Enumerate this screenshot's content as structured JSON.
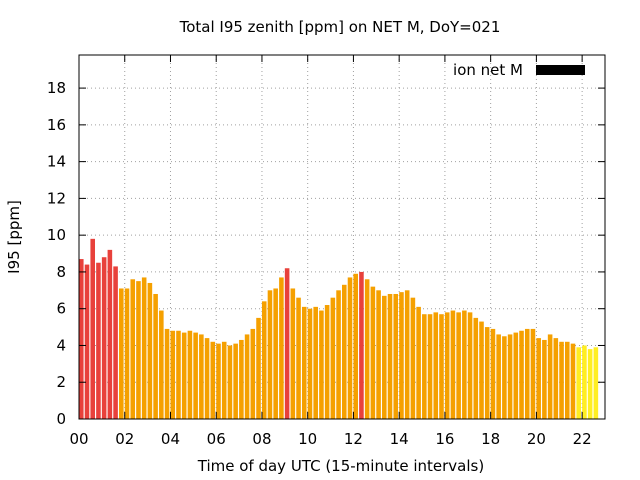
{
  "chart_data": {
    "type": "bar",
    "title": "Total I95 zenith [ppm] on NET M, DoY=021",
    "xlabel": "Time of day UTC (15-minute intervals)",
    "ylabel": "I95 [ppm]",
    "xlim": [
      0,
      23
    ],
    "ylim": [
      0,
      19.8
    ],
    "grid": true,
    "legend": {
      "label": "ion net M",
      "color": "#000000",
      "placement": "top-right"
    },
    "x_ticks": [
      "00",
      "02",
      "04",
      "06",
      "08",
      "10",
      "12",
      "14",
      "16",
      "18",
      "20",
      "22"
    ],
    "y_ticks": [
      "0",
      "2",
      "4",
      "6",
      "8",
      "10",
      "12",
      "14",
      "16",
      "18"
    ],
    "interval_hours": 0.25,
    "colors": {
      "high": "#e8413b",
      "mid": "#f5a000",
      "low": "#ffee22"
    },
    "values": [
      8.7,
      8.4,
      9.8,
      8.5,
      8.8,
      9.2,
      8.3,
      7.1,
      7.1,
      7.6,
      7.5,
      7.7,
      7.4,
      6.8,
      5.9,
      4.9,
      4.8,
      4.8,
      4.7,
      4.8,
      4.7,
      4.6,
      4.4,
      4.2,
      4.1,
      4.2,
      4.0,
      4.1,
      4.3,
      4.6,
      4.9,
      5.5,
      6.4,
      7.0,
      7.1,
      7.7,
      8.2,
      7.1,
      6.6,
      6.1,
      6.0,
      6.1,
      5.9,
      6.2,
      6.6,
      7.0,
      7.3,
      7.7,
      7.9,
      8.0,
      7.6,
      7.2,
      7.0,
      6.7,
      6.8,
      6.8,
      6.9,
      7.0,
      6.6,
      6.1,
      5.7,
      5.7,
      5.8,
      5.7,
      5.8,
      5.9,
      5.8,
      5.9,
      5.8,
      5.5,
      5.3,
      5.0,
      4.9,
      4.6,
      4.5,
      4.6,
      4.7,
      4.8,
      4.9,
      4.9,
      4.4,
      4.3,
      4.6,
      4.4,
      4.2,
      4.2,
      4.1,
      3.9,
      4.0,
      3.8,
      3.9
    ],
    "levels": [
      "high",
      "high",
      "high",
      "high",
      "high",
      "high",
      "high",
      "mid",
      "mid",
      "mid",
      "mid",
      "mid",
      "mid",
      "mid",
      "mid",
      "mid",
      "mid",
      "mid",
      "mid",
      "mid",
      "mid",
      "mid",
      "mid",
      "mid",
      "mid",
      "mid",
      "mid",
      "mid",
      "mid",
      "mid",
      "mid",
      "mid",
      "mid",
      "mid",
      "mid",
      "mid",
      "high",
      "mid",
      "mid",
      "mid",
      "mid",
      "mid",
      "mid",
      "mid",
      "mid",
      "mid",
      "mid",
      "mid",
      "mid",
      "high",
      "mid",
      "mid",
      "mid",
      "mid",
      "mid",
      "mid",
      "mid",
      "mid",
      "mid",
      "mid",
      "mid",
      "mid",
      "mid",
      "mid",
      "mid",
      "mid",
      "mid",
      "mid",
      "mid",
      "mid",
      "mid",
      "mid",
      "mid",
      "mid",
      "mid",
      "mid",
      "mid",
      "mid",
      "mid",
      "mid",
      "mid",
      "mid",
      "mid",
      "mid",
      "mid",
      "mid",
      "mid",
      "low",
      "low",
      "low",
      "low"
    ]
  }
}
